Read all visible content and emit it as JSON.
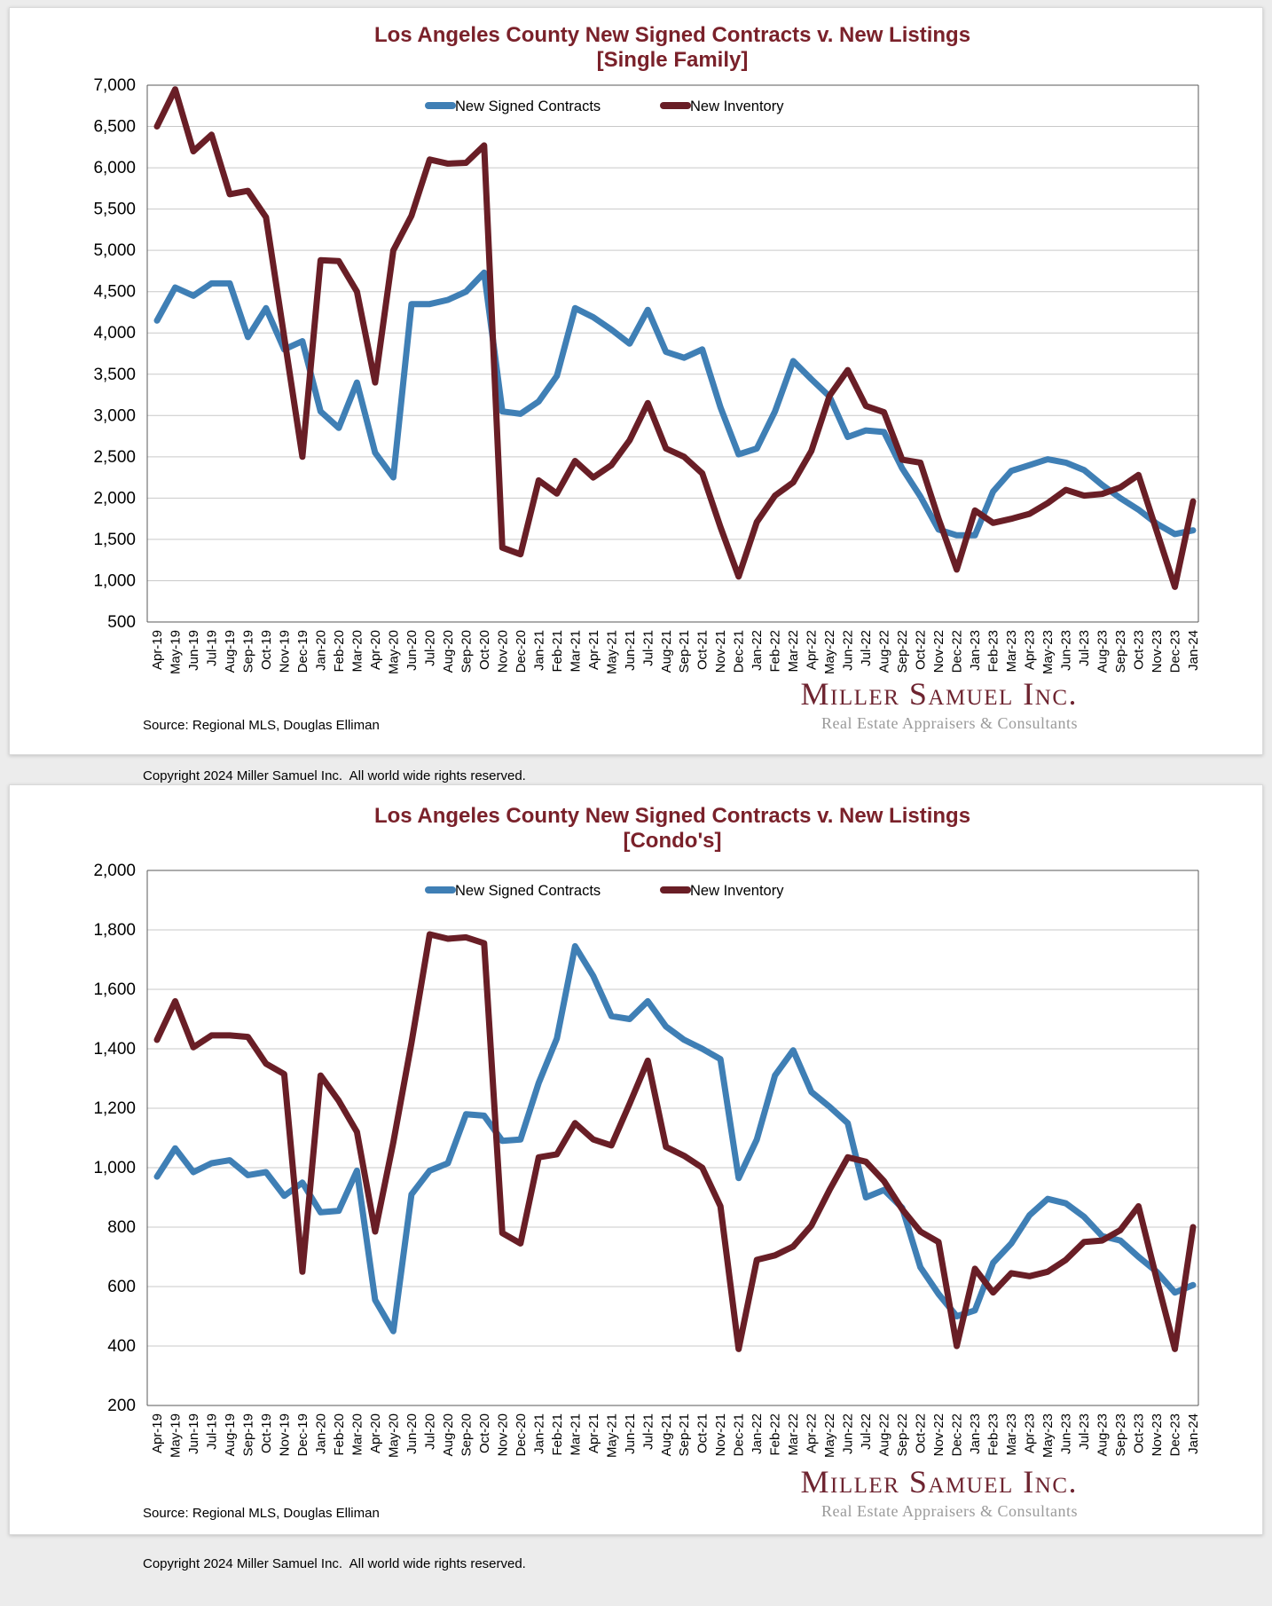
{
  "page_background": "#ECECEC",
  "card_background": "#FFFFFF",
  "footer": {
    "source": "Source: Regional MLS, Douglas Elliman",
    "copyright": "Copyright 2024 Miller Samuel Inc.  All world wide rights reserved."
  },
  "brand": {
    "name": "Miller Samuel Inc.",
    "tagline": "Real Estate Appraisers & Consultants"
  },
  "colors": {
    "title": "#7A212A",
    "contracts": "#3F7FB5",
    "inventory": "#691E26",
    "grid": "#C9C9C9",
    "plot_border": "#595959",
    "axis_text": "#000000"
  },
  "chart_data": [
    {
      "type": "line",
      "title": "Los Angeles County New Signed Contracts v. New Listings",
      "subtitle": "[Single Family]",
      "ylim": [
        500,
        7000
      ],
      "ytick": 500,
      "grid": true,
      "legend_position": "top-inside",
      "x": [
        "Apr-19",
        "May-19",
        "Jun-19",
        "Jul-19",
        "Aug-19",
        "Sep-19",
        "Oct-19",
        "Nov-19",
        "Dec-19",
        "Jan-20",
        "Feb-20",
        "Mar-20",
        "Apr-20",
        "May-20",
        "Jun-20",
        "Jul-20",
        "Aug-20",
        "Sep-20",
        "Oct-20",
        "Nov-20",
        "Dec-20",
        "Jan-21",
        "Feb-21",
        "Mar-21",
        "Apr-21",
        "May-21",
        "Jun-21",
        "Jul-21",
        "Aug-21",
        "Sep-21",
        "Oct-21",
        "Nov-21",
        "Dec-21",
        "Jan-22",
        "Feb-22",
        "Mar-22",
        "Apr-22",
        "May-22",
        "Jun-22",
        "Jul-22",
        "Aug-22",
        "Sep-22",
        "Oct-22",
        "Nov-22",
        "Dec-22",
        "Jan-23",
        "Feb-23",
        "Mar-23",
        "Apr-23",
        "May-23",
        "Jun-23",
        "Jul-23",
        "Aug-23",
        "Sep-23",
        "Oct-23",
        "Nov-23",
        "Dec-23",
        "Jan-24"
      ],
      "series": [
        {
          "name": "New Signed Contracts",
          "color": "#3F7FB5",
          "values": [
            4150,
            4550,
            4450,
            4600,
            4600,
            3950,
            4300,
            3800,
            3900,
            3050,
            2850,
            3400,
            2550,
            2250,
            4350,
            4350,
            4400,
            4500,
            4730,
            3050,
            3020,
            3170,
            3480,
            4300,
            4190,
            4040,
            3870,
            4280,
            3770,
            3700,
            3800,
            3100,
            2530,
            2600,
            3050,
            3660,
            3440,
            3230,
            2740,
            2820,
            2800,
            2360,
            2020,
            1620,
            1550,
            1550,
            2080,
            2330,
            2400,
            2470,
            2430,
            2340,
            2160,
            2000,
            1860,
            1690,
            1565,
            1610
          ]
        },
        {
          "name": "New Inventory",
          "color": "#691E26",
          "values": [
            6500,
            6950,
            6200,
            6400,
            5680,
            5720,
            5400,
            3950,
            2500,
            4880,
            4870,
            4500,
            3400,
            5000,
            5420,
            6100,
            6050,
            6060,
            6270,
            1400,
            1320,
            2215,
            2055,
            2450,
            2250,
            2400,
            2700,
            3150,
            2600,
            2500,
            2300,
            1650,
            1050,
            1710,
            2030,
            2190,
            2570,
            3240,
            3550,
            3115,
            3040,
            2465,
            2430,
            1750,
            1135,
            1850,
            1700,
            1750,
            1810,
            1940,
            2100,
            2030,
            2050,
            2130,
            2280,
            1600,
            925,
            1960
          ]
        }
      ]
    },
    {
      "type": "line",
      "title": "Los Angeles County New Signed Contracts v. New Listings",
      "subtitle": "[Condo's]",
      "ylim": [
        200,
        2000
      ],
      "ytick": 200,
      "grid": true,
      "legend_position": "top-inside",
      "x": [
        "Apr-19",
        "May-19",
        "Jun-19",
        "Jul-19",
        "Aug-19",
        "Sep-19",
        "Oct-19",
        "Nov-19",
        "Dec-19",
        "Jan-20",
        "Feb-20",
        "Mar-20",
        "Apr-20",
        "May-20",
        "Jun-20",
        "Jul-20",
        "Aug-20",
        "Sep-20",
        "Oct-20",
        "Nov-20",
        "Dec-20",
        "Jan-21",
        "Feb-21",
        "Mar-21",
        "Apr-21",
        "May-21",
        "Jun-21",
        "Jul-21",
        "Aug-21",
        "Sep-21",
        "Oct-21",
        "Nov-21",
        "Dec-21",
        "Jan-22",
        "Feb-22",
        "Mar-22",
        "Apr-22",
        "May-22",
        "Jun-22",
        "Jul-22",
        "Aug-22",
        "Sep-22",
        "Oct-22",
        "Nov-22",
        "Dec-22",
        "Jan-23",
        "Feb-23",
        "Mar-23",
        "Apr-23",
        "May-23",
        "Jun-23",
        "Jul-23",
        "Aug-23",
        "Sep-23",
        "Oct-23",
        "Nov-23",
        "Dec-23",
        "Jan-24"
      ],
      "series": [
        {
          "name": "New Signed Contracts",
          "color": "#3F7FB5",
          "values": [
            970,
            1065,
            985,
            1015,
            1025,
            975,
            985,
            905,
            950,
            850,
            855,
            990,
            555,
            450,
            910,
            990,
            1015,
            1180,
            1175,
            1090,
            1095,
            1285,
            1435,
            1745,
            1645,
            1510,
            1500,
            1560,
            1475,
            1430,
            1400,
            1365,
            965,
            1095,
            1310,
            1395,
            1255,
            1205,
            1150,
            900,
            925,
            865,
            665,
            575,
            500,
            520,
            680,
            745,
            840,
            895,
            880,
            835,
            770,
            755,
            700,
            650,
            580,
            605
          ]
        },
        {
          "name": "New Inventory",
          "color": "#691E26",
          "values": [
            1430,
            1560,
            1405,
            1445,
            1445,
            1440,
            1350,
            1315,
            650,
            1310,
            1225,
            1120,
            785,
            1085,
            1420,
            1785,
            1770,
            1775,
            1755,
            780,
            745,
            1035,
            1045,
            1150,
            1095,
            1075,
            1215,
            1360,
            1070,
            1040,
            1000,
            870,
            390,
            690,
            705,
            735,
            805,
            925,
            1035,
            1020,
            955,
            860,
            785,
            750,
            400,
            660,
            580,
            645,
            635,
            650,
            690,
            750,
            755,
            790,
            870,
            625,
            390,
            800
          ]
        }
      ]
    }
  ]
}
